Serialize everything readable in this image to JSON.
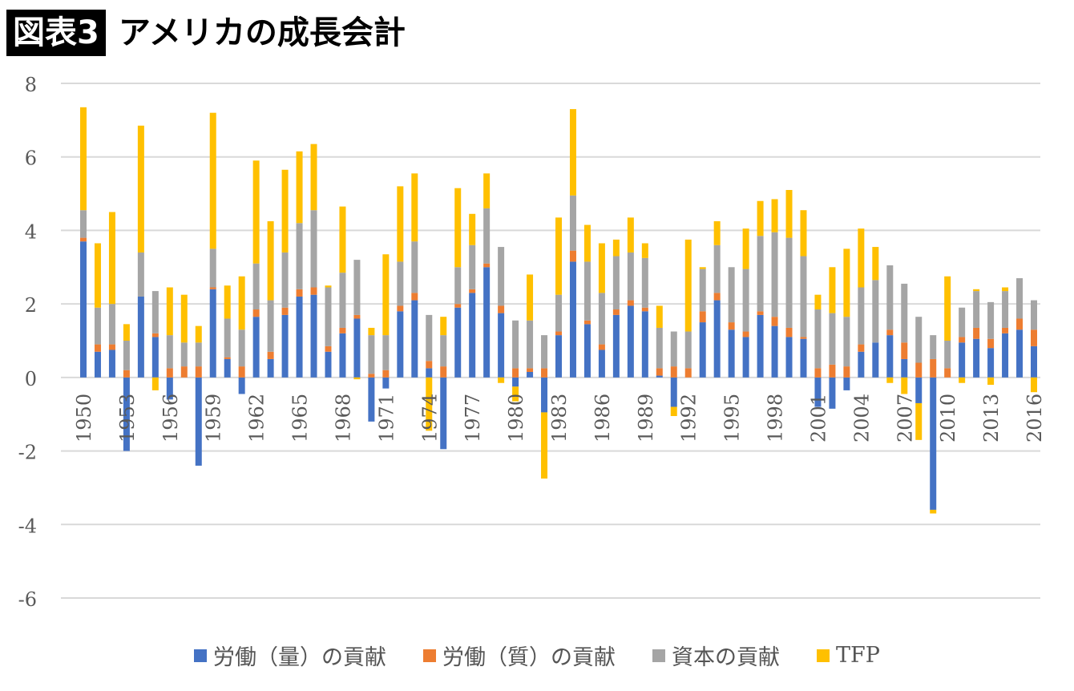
{
  "header": {
    "badge": "図表3",
    "title": "アメリカの成長会計"
  },
  "colors": {
    "labor_quantity": "#4472C4",
    "labor_quality": "#ED7D31",
    "capital": "#A5A5A5",
    "tfp": "#FFC000",
    "grid": "#D9D9D9",
    "axis_text": "#595959"
  },
  "chart_data": {
    "type": "bar",
    "stacked": true,
    "ylim": [
      -6,
      8
    ],
    "yticks": [
      "8",
      "6",
      "4",
      "2",
      "0",
      "-2",
      "-4",
      "-6"
    ],
    "ytick_values": [
      8,
      6,
      4,
      2,
      0,
      -2,
      -4,
      -6
    ],
    "xtick_labels": [
      "1950",
      "1953",
      "1956",
      "1959",
      "1962",
      "1965",
      "1968",
      "1971",
      "1974",
      "1977",
      "1980",
      "1983",
      "1986",
      "1989",
      "1992",
      "1995",
      "1998",
      "2001",
      "2004",
      "2007",
      "2010",
      "2013",
      "2016"
    ],
    "grid": "horizontal",
    "legend_position": "bottom",
    "categories": [
      1950,
      1951,
      1952,
      1953,
      1954,
      1955,
      1956,
      1957,
      1958,
      1959,
      1960,
      1961,
      1962,
      1963,
      1964,
      1965,
      1966,
      1967,
      1968,
      1969,
      1970,
      1971,
      1972,
      1973,
      1974,
      1975,
      1976,
      1977,
      1978,
      1979,
      1980,
      1981,
      1982,
      1983,
      1984,
      1985,
      1986,
      1987,
      1988,
      1989,
      1990,
      1991,
      1992,
      1993,
      1994,
      1995,
      1996,
      1997,
      1998,
      1999,
      2000,
      2001,
      2002,
      2003,
      2004,
      2005,
      2006,
      2007,
      2008,
      2009,
      2010,
      2011,
      2012,
      2013,
      2014,
      2015,
      2016
    ],
    "series": [
      {
        "name": "労働（量）の貢献",
        "color_key": "labor_quantity",
        "values": [
          3.7,
          0.7,
          0.75,
          -2.0,
          2.2,
          1.1,
          -0.6,
          0.0,
          -2.4,
          2.4,
          0.5,
          -0.45,
          1.65,
          0.5,
          1.7,
          2.2,
          2.25,
          0.7,
          1.2,
          1.6,
          -1.2,
          -0.3,
          1.8,
          2.1,
          0.25,
          -1.95,
          1.9,
          2.3,
          3.0,
          1.75,
          -0.25,
          0.15,
          -0.95,
          1.15,
          3.15,
          1.45,
          0.75,
          1.7,
          1.95,
          1.8,
          0.05,
          -0.8,
          0.0,
          1.5,
          2.1,
          1.3,
          1.1,
          1.7,
          1.4,
          1.1,
          1.05,
          -0.8,
          -0.85,
          -0.35,
          0.7,
          0.95,
          1.15,
          0.5,
          -0.7,
          -3.6,
          0.0,
          0.95,
          1.05,
          0.8,
          1.2,
          1.3,
          0.85
        ]
      },
      {
        "name": "労働（質）の貢献",
        "color_key": "labor_quality",
        "values": [
          0.1,
          0.2,
          0.15,
          0.2,
          0.0,
          0.1,
          0.25,
          0.3,
          0.3,
          0.05,
          0.05,
          0.3,
          0.2,
          0.2,
          0.2,
          0.2,
          0.2,
          0.15,
          0.15,
          0.1,
          0.1,
          0.2,
          0.15,
          0.2,
          0.2,
          0.3,
          0.1,
          0.1,
          0.1,
          0.2,
          0.25,
          0.1,
          0.25,
          0.1,
          0.3,
          0.1,
          0.15,
          0.15,
          0.15,
          0.1,
          0.2,
          0.3,
          0.25,
          0.3,
          0.2,
          0.2,
          0.15,
          0.1,
          0.25,
          0.25,
          0.05,
          0.25,
          0.35,
          0.3,
          0.2,
          0.0,
          0.15,
          0.45,
          0.4,
          0.5,
          0.25,
          0.15,
          0.3,
          0.25,
          0.15,
          0.3,
          0.45
        ]
      },
      {
        "name": "資本の貢献",
        "color_key": "capital",
        "values": [
          0.75,
          1.0,
          1.1,
          0.8,
          1.2,
          1.15,
          0.9,
          0.65,
          0.65,
          1.05,
          1.05,
          1.0,
          1.25,
          1.4,
          1.5,
          1.8,
          2.1,
          1.6,
          1.5,
          1.5,
          1.05,
          0.95,
          1.2,
          1.4,
          1.25,
          0.85,
          1.0,
          1.2,
          1.5,
          1.6,
          1.3,
          1.3,
          0.9,
          1.0,
          1.5,
          1.6,
          1.4,
          1.45,
          1.3,
          1.35,
          1.1,
          0.95,
          1.0,
          1.15,
          1.3,
          1.5,
          1.7,
          2.05,
          2.3,
          2.45,
          2.2,
          1.6,
          1.4,
          1.35,
          1.55,
          1.7,
          1.75,
          1.6,
          1.25,
          0.65,
          0.75,
          0.8,
          1.0,
          1.0,
          1.0,
          1.1,
          0.8
        ]
      },
      {
        "name": "TFP",
        "color_key": "tfp",
        "values": [
          2.8,
          1.75,
          2.5,
          0.45,
          3.45,
          -0.35,
          1.3,
          1.3,
          0.45,
          3.7,
          0.9,
          1.45,
          2.8,
          2.15,
          2.25,
          1.95,
          1.8,
          0.05,
          1.8,
          -0.05,
          0.2,
          2.2,
          2.05,
          1.85,
          -1.45,
          0.5,
          2.15,
          0.85,
          0.95,
          -0.15,
          -0.4,
          1.25,
          -1.8,
          2.1,
          2.35,
          1.0,
          1.35,
          0.45,
          0.95,
          0.4,
          0.6,
          -0.25,
          2.5,
          0.05,
          0.65,
          0.0,
          1.1,
          0.95,
          0.9,
          1.3,
          1.25,
          0.4,
          1.25,
          1.85,
          1.6,
          0.9,
          -0.15,
          -0.45,
          -1.0,
          -0.1,
          1.75,
          -0.15,
          0.05,
          -0.2,
          0.1,
          0.0,
          -0.4
        ]
      }
    ]
  }
}
